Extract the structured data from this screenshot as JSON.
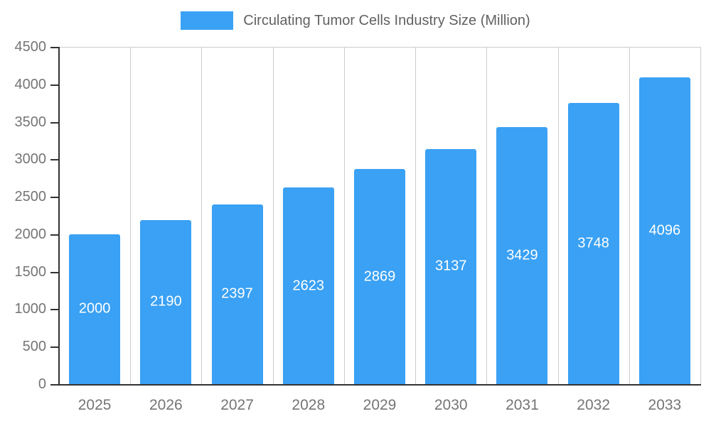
{
  "chart_data": {
    "type": "bar",
    "title": "Circulating Tumor Cells Industry Size (Million)",
    "categories": [
      "2025",
      "2026",
      "2027",
      "2028",
      "2029",
      "2030",
      "2031",
      "2032",
      "2033"
    ],
    "values": [
      2000,
      2190,
      2397,
      2623,
      2869,
      3137,
      3429,
      3748,
      4096
    ],
    "xlabel": "",
    "ylabel": "",
    "ylim": [
      0,
      4500
    ],
    "ytick_step": 500,
    "grid": "vertical-only-plus-top-border",
    "legend_position": "top-center",
    "value_labels": "white-centered-inside-bars",
    "colors": {
      "bar": "#3AA1F4",
      "axis": "#333333",
      "gridline": "#cccccc",
      "tick_label": "#757575",
      "value_label": "#ffffff",
      "legend_text": "#616161"
    }
  }
}
